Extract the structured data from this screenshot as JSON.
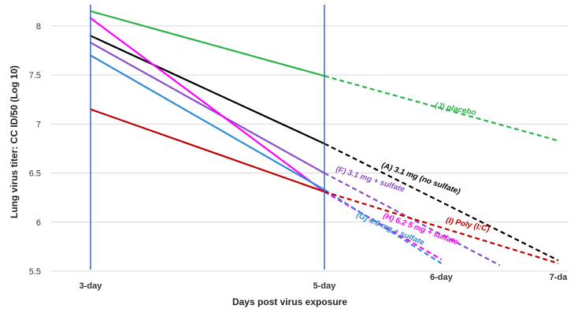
{
  "chart_data": {
    "type": "line",
    "xlabel": "Days post virus exposure",
    "ylabel": "Lung virus titer: CC ID/50 (Log 10)",
    "ylim": [
      5.5,
      8.2
    ],
    "yticks": [
      "5.5",
      "6",
      "6.5",
      "7",
      "7.5",
      "8"
    ],
    "xlim": [
      3,
      7
    ],
    "xticks": [
      {
        "x": 3,
        "label": "3-day"
      },
      {
        "x": 5,
        "label": "5-day"
      },
      {
        "x": 6,
        "label": "6-day"
      },
      {
        "x": 7,
        "label": "7-da"
      }
    ],
    "grid": true,
    "series": [
      {
        "name": "(J) placebo",
        "color": "#2db34a",
        "points": [
          [
            3,
            8.15
          ],
          [
            5,
            7.49
          ]
        ],
        "projection": [
          [
            5,
            7.49
          ],
          [
            7,
            6.83
          ]
        ]
      },
      {
        "name": "(A) 3.1 mg (no sulfate)",
        "color": "#000000",
        "points": [
          [
            3,
            7.9
          ],
          [
            5,
            6.8
          ]
        ],
        "projection": [
          [
            5,
            6.8
          ],
          [
            7,
            5.61
          ]
        ]
      },
      {
        "name": "(F) 3.1 mg + sulfate",
        "color": "#8a4fc6",
        "points": [
          [
            3,
            7.83
          ],
          [
            5,
            6.5
          ]
        ],
        "projection": [
          [
            5,
            6.5
          ],
          [
            6.5,
            5.56
          ]
        ]
      },
      {
        "name": "(H) 6.2 5 mg + sulfate",
        "color": "#ff00ff",
        "points": [
          [
            3,
            8.08
          ],
          [
            5,
            6.31
          ]
        ],
        "projection": [
          [
            5,
            6.31
          ],
          [
            6,
            5.62
          ]
        ]
      },
      {
        "name": "(G) 4.6 mg + sulfate",
        "color": "#2e8bd4",
        "points": [
          [
            3,
            7.7
          ],
          [
            5,
            6.33
          ]
        ],
        "projection": [
          [
            5,
            6.33
          ],
          [
            6,
            5.58
          ]
        ]
      },
      {
        "name": "(I) Poly (I:C)",
        "color": "#c00000",
        "points": [
          [
            3,
            7.15
          ],
          [
            5,
            6.31
          ]
        ],
        "projection": [
          [
            5,
            6.31
          ],
          [
            7,
            5.58
          ]
        ]
      }
    ],
    "reference_lines": [
      {
        "x": 3,
        "color": "#4472c4"
      },
      {
        "x": 5,
        "color": "#4472c4"
      }
    ]
  }
}
